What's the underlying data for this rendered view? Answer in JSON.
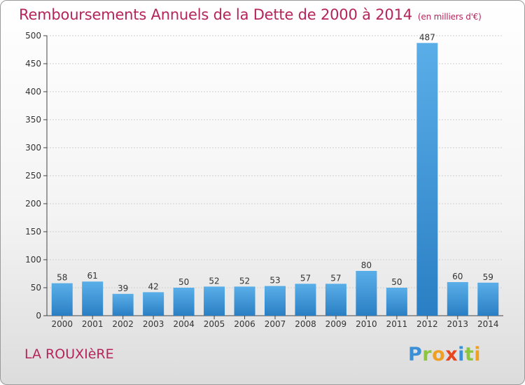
{
  "chart_data": {
    "type": "bar",
    "title": "Remboursements Annuels de la Dette de 2000 à 2014",
    "unit_label": "(en milliers d'€)",
    "categories": [
      "2000",
      "2001",
      "2002",
      "2003",
      "2004",
      "2005",
      "2006",
      "2007",
      "2008",
      "2009",
      "2010",
      "2011",
      "2012",
      "2013",
      "2014"
    ],
    "values": [
      58,
      61,
      39,
      42,
      50,
      52,
      52,
      53,
      57,
      57,
      80,
      50,
      487,
      60,
      59
    ],
    "ylim": [
      0,
      500
    ],
    "yticks": [
      0,
      50,
      100,
      150,
      200,
      250,
      300,
      350,
      400,
      450,
      500
    ],
    "grid": true,
    "xlabel": "",
    "ylabel": ""
  },
  "footer": {
    "commune": "LA ROUXIèRE",
    "logo_text": "Proxiti"
  },
  "colors": {
    "title": "#b5245a",
    "bar_light": "#5aaee8",
    "bar_dark": "#2a7fc4",
    "grid": "#cfcfcf",
    "axis": "#444444"
  }
}
